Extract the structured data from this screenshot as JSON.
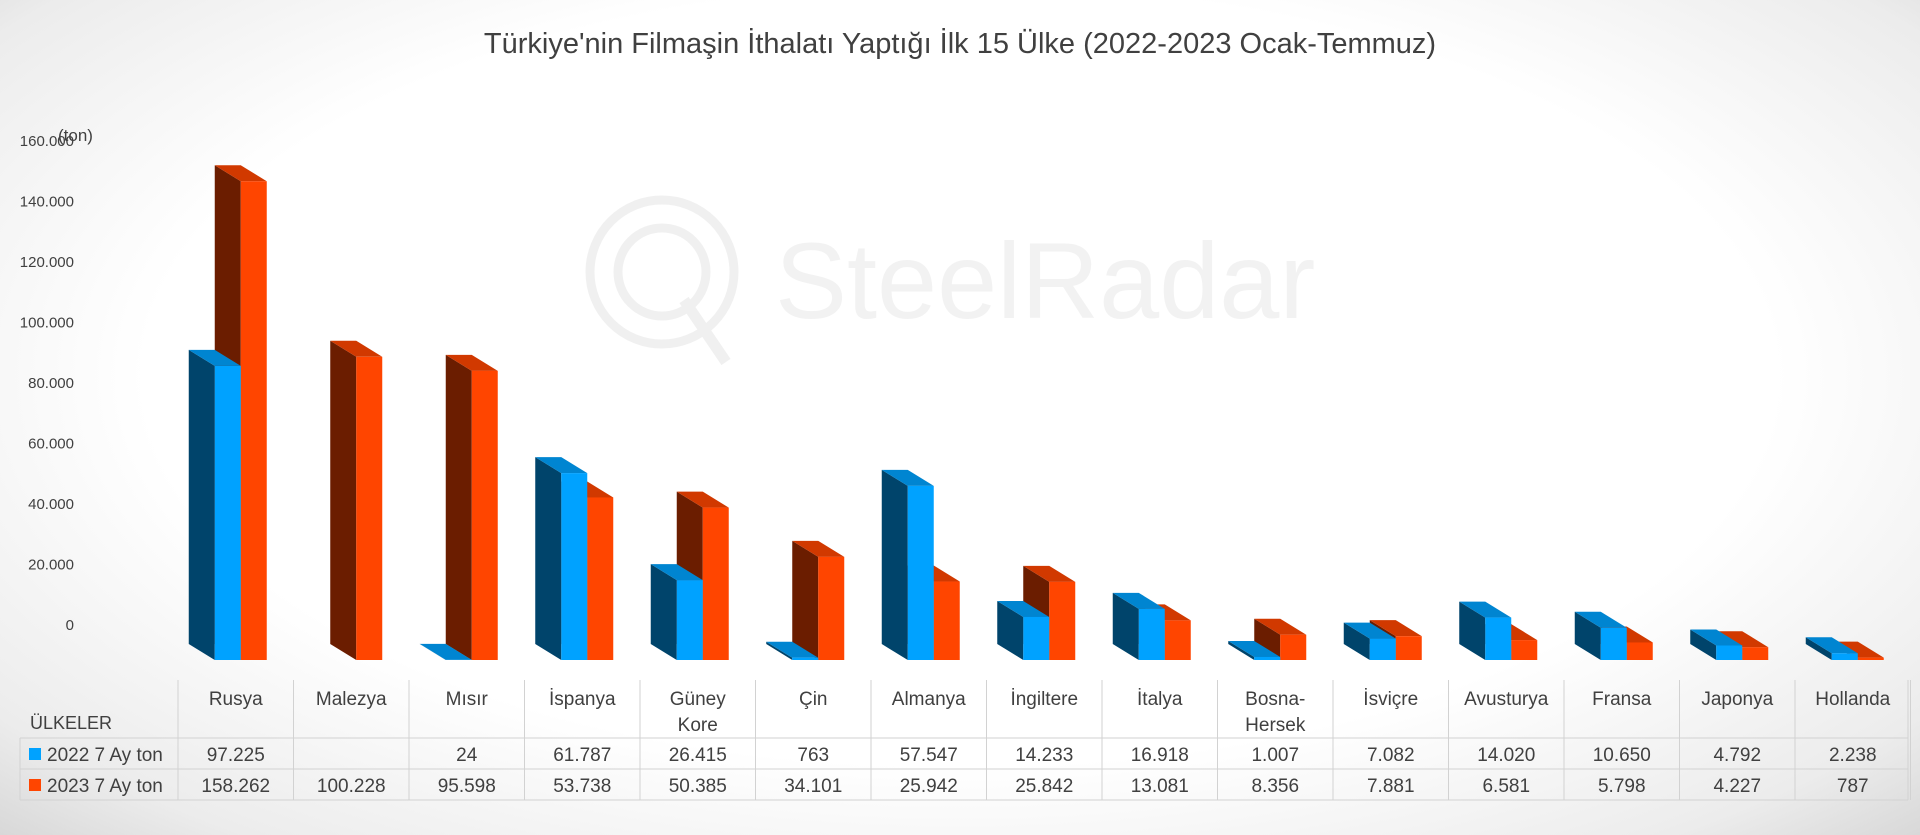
{
  "chart_data": {
    "type": "bar",
    "title": "Türkiye'nin Filmaşin İthalatı Yaptığı İlk 15 Ülke (2022-2023 Ocak-Temmuz)",
    "ylabel": "(ton)",
    "table_header": "ÜLKELER",
    "watermark": "SteelRadar",
    "ylim": [
      0,
      160000
    ],
    "yticks": [
      "0",
      "20.000",
      "40.000",
      "60.000",
      "80.000",
      "100.000",
      "120.000",
      "140.000",
      "160.000"
    ],
    "categories": [
      "Rusya",
      "Malezya",
      "Mısır",
      "İspanya",
      "Güney Kore",
      "Çin",
      "Almanya",
      "İngiltere",
      "İtalya",
      "Bosna-Hersek",
      "İsviçre",
      "Avusturya",
      "Fransa",
      "Japonya",
      "Hollanda"
    ],
    "series": [
      {
        "name": "2022 7 Ay ton",
        "color": "#00A2FF",
        "values": [
          97225,
          null,
          24,
          61787,
          26415,
          763,
          57547,
          14233,
          16918,
          1007,
          7082,
          14020,
          10650,
          4792,
          2238
        ],
        "labels": [
          "97.225",
          "",
          "24",
          "61.787",
          "26.415",
          "763",
          "57.547",
          "14.233",
          "16.918",
          "1.007",
          "7.082",
          "14.020",
          "10.650",
          "4.792",
          "2.238"
        ]
      },
      {
        "name": "2023 7 Ay ton",
        "color": "#FF4500",
        "values": [
          158262,
          100228,
          95598,
          53738,
          50385,
          34101,
          25942,
          25842,
          13081,
          8356,
          7881,
          6581,
          5798,
          4227,
          787
        ],
        "labels": [
          "158.262",
          "100.228",
          "95.598",
          "53.738",
          "50.385",
          "34.101",
          "25.942",
          "25.842",
          "13.081",
          "8.356",
          "7.881",
          "6.581",
          "5.798",
          "4.227",
          "787"
        ]
      }
    ],
    "grid": false,
    "legend_placement": "data-table"
  }
}
